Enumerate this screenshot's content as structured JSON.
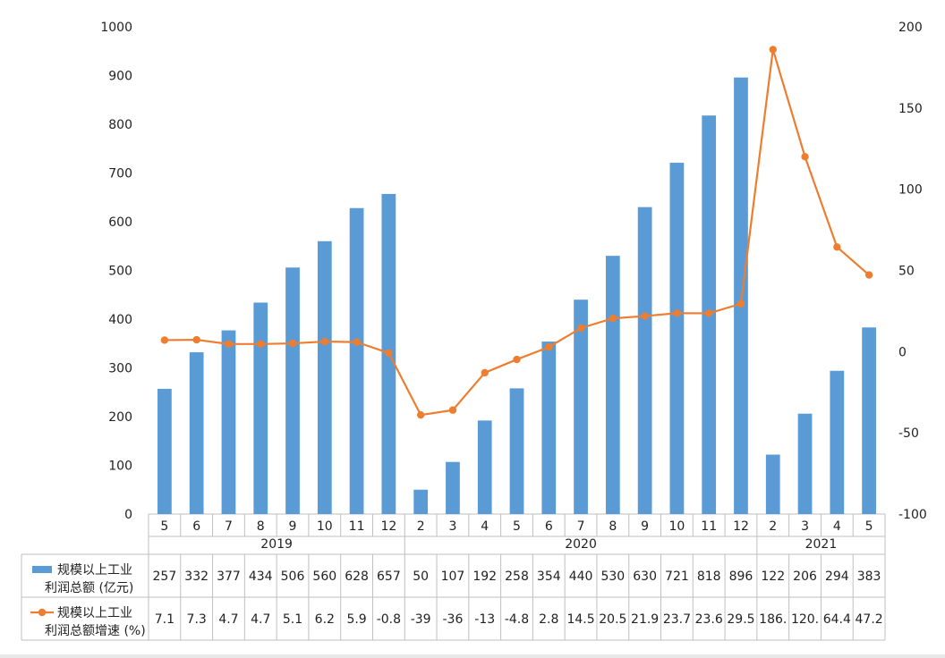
{
  "chart_data": {
    "type": "bar+line",
    "x_groups": [
      {
        "label": "2019",
        "months": [
          "5",
          "6",
          "7",
          "8",
          "9",
          "10",
          "11",
          "12"
        ]
      },
      {
        "label": "2020",
        "months": [
          "2",
          "3",
          "4",
          "5",
          "6",
          "7",
          "8",
          "9",
          "10",
          "11",
          "12"
        ]
      },
      {
        "label": "2021",
        "months": [
          "2",
          "3",
          "4",
          "5"
        ]
      }
    ],
    "categories": [
      "5",
      "6",
      "7",
      "8",
      "9",
      "10",
      "11",
      "12",
      "2",
      "3",
      "4",
      "5",
      "6",
      "7",
      "8",
      "9",
      "10",
      "11",
      "12",
      "2",
      "3",
      "4",
      "5"
    ],
    "series": [
      {
        "name": "规模以上工业利润总额 (亿元)",
        "name_lines": [
          "规模以上工业",
          "利润总额 (亿元)"
        ],
        "kind": "bar",
        "axis": "left",
        "color": "#5b9bd5",
        "values": [
          257,
          332,
          377,
          434,
          506,
          560,
          628,
          657,
          50,
          107,
          192,
          258,
          354,
          440,
          530,
          630,
          721,
          818,
          896,
          122,
          206,
          294,
          383
        ],
        "table_labels": [
          "257",
          "332",
          "377",
          "434",
          "506",
          "560",
          "628",
          "657",
          "50",
          "107",
          "192",
          "258",
          "354",
          "440",
          "530",
          "630",
          "721",
          "818",
          "896",
          "122",
          "206",
          "294",
          "383"
        ]
      },
      {
        "name": "规模以上工业利润总额增速 (%)",
        "name_lines": [
          "规模以上工业",
          "利润总额增速 (%)"
        ],
        "kind": "line",
        "axis": "right",
        "color": "#ed7d31",
        "values": [
          7.1,
          7.3,
          4.7,
          4.7,
          5.1,
          6.2,
          5.9,
          -0.8,
          -39,
          -36,
          -13,
          -4.8,
          2.8,
          14.5,
          20.5,
          21.9,
          23.7,
          23.6,
          29.5,
          186,
          120,
          64.4,
          47.2
        ],
        "table_labels": [
          "7.1",
          "7.3",
          "4.7",
          "4.7",
          "5.1",
          "6.2",
          "5.9",
          "-0.8",
          "-39",
          "-36",
          "-13",
          "-4.8",
          "2.8",
          "14.5",
          "20.5",
          "21.9",
          "23.7",
          "23.6",
          "29.5",
          "186.",
          "120.",
          "64.4",
          "47.2"
        ]
      }
    ],
    "y_left": {
      "min": 0,
      "max": 1000,
      "step": 100
    },
    "y_right": {
      "min": -100,
      "max": 200,
      "step": 50
    },
    "grid": false,
    "legend": "data table"
  }
}
